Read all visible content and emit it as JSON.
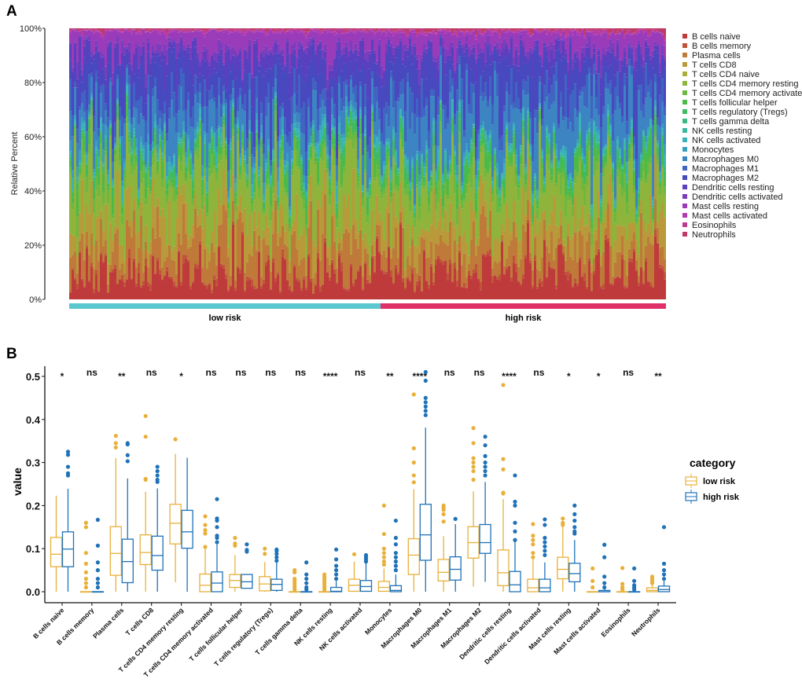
{
  "panel_labels": {
    "a": "A",
    "b": "B"
  },
  "chart_data": [
    {
      "type": "bar",
      "stacked": true,
      "panel": "A",
      "ylabel": "Relative Percent",
      "ylim": [
        0,
        100
      ],
      "yticks": [
        "0%",
        "20%",
        "40%",
        "60%",
        "80%",
        "100%"
      ],
      "legend_position": "right",
      "series_names": [
        "B cells naive",
        "B cells memory",
        "Plasma cells",
        "T cells CD8",
        "T cells CD4 naive",
        "T cells CD4 memory resting",
        "T cells CD4 memory activated",
        "T cells follicular helper",
        "T cells regulatory (Tregs)",
        "T cells gamma delta",
        "NK cells resting",
        "NK cells activated",
        "Monocytes",
        "Macrophages M0",
        "Macrophages M1",
        "Macrophages M2",
        "Dendritic cells resting",
        "Dendritic cells activated",
        "Mast cells resting",
        "Mast cells activated",
        "Eosinophils",
        "Neutrophils"
      ],
      "colors": [
        "#BF3B3B",
        "#C0543A",
        "#BF7A3A",
        "#B89A3A",
        "#A9AD3A",
        "#8EB43C",
        "#6DB840",
        "#4CBA48",
        "#3DBA62",
        "#3BB880",
        "#3BB79E",
        "#3AB3B6",
        "#3A9FBF",
        "#3C84C2",
        "#3F64C1",
        "#4848BF",
        "#5A3FBE",
        "#7A3DBD",
        "#9A3CBA",
        "#B23BB0",
        "#BD3B8E",
        "#BF3B66"
      ],
      "groups": [
        {
          "name": "low risk",
          "color": "#5BC8D0",
          "mean_composition": [
            0.09,
            0.01,
            0.1,
            0.1,
            0.0,
            0.16,
            0.03,
            0.03,
            0.02,
            0.005,
            0.005,
            0.02,
            0.02,
            0.09,
            0.05,
            0.12,
            0.06,
            0.02,
            0.055,
            0.005,
            0.005,
            0.005
          ]
        },
        {
          "name": "high risk",
          "color": "#E0306A",
          "mean_composition": [
            0.1,
            0.01,
            0.08,
            0.09,
            0.0,
            0.14,
            0.03,
            0.03,
            0.02,
            0.005,
            0.01,
            0.015,
            0.01,
            0.14,
            0.055,
            0.12,
            0.03,
            0.02,
            0.045,
            0.005,
            0.005,
            0.008
          ]
        }
      ]
    },
    {
      "type": "box",
      "panel": "B",
      "ylabel": "value",
      "ylim": [
        0,
        0.52
      ],
      "yticks": [
        "0.0",
        "0.1",
        "0.2",
        "0.3",
        "0.4",
        "0.5"
      ],
      "legend_title": "category",
      "legend_position": "right",
      "series": [
        {
          "name": "low risk",
          "color": "#E8B03A"
        },
        {
          "name": "high risk",
          "color": "#1F72B8"
        }
      ],
      "categories": [
        "B cells naive",
        "B cells memory",
        "Plasma cells",
        "T cells CD8",
        "T cells CD4 memory resting",
        "T cells CD4 memory activated",
        "T cells follicular helper",
        "T cells regulatory (Tregs)",
        "T cells gamma delta",
        "NK cells resting",
        "NK cells activated",
        "Monocytes",
        "Macrophages M0",
        "Macrophages M1",
        "Macrophages M2",
        "Dendritic cells resting",
        "Dendritic cells activated",
        "Mast cells resting",
        "Mast cells activated",
        "Eosinophils",
        "Neutrophils"
      ],
      "significance": [
        "*",
        "ns",
        "**",
        "ns",
        "*",
        "ns",
        "ns",
        "ns",
        "ns",
        "****",
        "ns",
        "**",
        "****",
        "ns",
        "ns",
        "****",
        "ns",
        "*",
        "*",
        "ns",
        "**"
      ],
      "stats_format": "[whisker_low, q1, median, q3, whisker_high]",
      "low_risk": [
        {
          "s": [
            0,
            0.058,
            0.087,
            0.126,
            0.223
          ],
          "out": []
        },
        {
          "s": [
            0,
            0,
            0,
            0,
            0
          ],
          "out": [
            0.01,
            0.02,
            0.03,
            0.045,
            0.065,
            0.09,
            0.15,
            0.16
          ]
        },
        {
          "s": [
            0,
            0.038,
            0.089,
            0.151,
            0.31
          ],
          "out": [
            0.335,
            0.345,
            0.362
          ]
        },
        {
          "s": [
            0,
            0.063,
            0.091,
            0.132,
            0.232
          ],
          "out": [
            0.26,
            0.262,
            0.36,
            0.408
          ]
        },
        {
          "s": [
            0.022,
            0.111,
            0.159,
            0.203,
            0.32
          ],
          "out": [
            0.354
          ]
        },
        {
          "s": [
            0,
            0,
            0.015,
            0.041,
            0.1
          ],
          "out": [
            0.104,
            0.135,
            0.143,
            0.155,
            0.175
          ]
        },
        {
          "s": [
            0,
            0.01,
            0.026,
            0.04,
            0.085
          ],
          "out": [
            0.107,
            0.112,
            0.125
          ]
        },
        {
          "s": [
            0,
            0.002,
            0.018,
            0.035,
            0.069
          ],
          "out": [
            0.088,
            0.1
          ]
        },
        {
          "s": [
            0,
            0,
            0,
            0,
            0
          ],
          "out": [
            0.005,
            0.01,
            0.015,
            0.02,
            0.025,
            0.03,
            0.045,
            0.05
          ]
        },
        {
          "s": [
            0,
            0,
            0,
            0,
            0
          ],
          "out": [
            0.005,
            0.01,
            0.015,
            0.02,
            0.025,
            0.03,
            0.035,
            0.04
          ]
        },
        {
          "s": [
            0,
            0.001,
            0.015,
            0.029,
            0.07
          ],
          "out": [
            0.087
          ]
        },
        {
          "s": [
            0,
            0.001,
            0.01,
            0.024,
            0.054
          ],
          "out": [
            0.063,
            0.07,
            0.08,
            0.09,
            0.1,
            0.134,
            0.2
          ]
        },
        {
          "s": [
            0,
            0.04,
            0.085,
            0.123,
            0.238
          ],
          "out": [
            0.254,
            0.27,
            0.3,
            0.333,
            0.458
          ]
        },
        {
          "s": [
            0,
            0.025,
            0.045,
            0.075,
            0.129
          ],
          "out": [
            0.163,
            0.18,
            0.19,
            0.195,
            0.2
          ]
        },
        {
          "s": [
            0.012,
            0.078,
            0.114,
            0.151,
            0.233
          ],
          "out": [
            0.26,
            0.28,
            0.29,
            0.3,
            0.31,
            0.345,
            0.38
          ]
        },
        {
          "s": [
            0,
            0.014,
            0.044,
            0.097,
            0.215
          ],
          "out": [
            0.228,
            0.23,
            0.284,
            0.308,
            0.48
          ]
        },
        {
          "s": [
            0,
            0,
            0.009,
            0.029,
            0.075
          ],
          "out": [
            0.08,
            0.09,
            0.11,
            0.12,
            0.13,
            0.157
          ]
        },
        {
          "s": [
            0,
            0.03,
            0.052,
            0.08,
            0.153
          ],
          "out": [
            0.155,
            0.16,
            0.17
          ]
        },
        {
          "s": [
            0,
            0,
            0,
            0,
            0
          ],
          "out": [
            0.01,
            0.025,
            0.054
          ]
        },
        {
          "s": [
            0,
            0,
            0,
            0,
            0
          ],
          "out": [
            0.005,
            0.01,
            0.018,
            0.055
          ]
        },
        {
          "s": [
            0,
            0,
            0.003,
            0.009,
            0.018
          ],
          "out": [
            0.02,
            0.025,
            0.03,
            0.035
          ]
        }
      ],
      "high_risk": [
        {
          "s": [
            0,
            0.058,
            0.099,
            0.139,
            0.239
          ],
          "out": [
            0.27,
            0.275,
            0.29,
            0.318,
            0.325
          ]
        },
        {
          "s": [
            0,
            0,
            0,
            0,
            0
          ],
          "out": [
            0.01,
            0.02,
            0.03,
            0.05,
            0.068,
            0.107,
            0.167
          ]
        },
        {
          "s": [
            0,
            0.021,
            0.07,
            0.122,
            0.263
          ],
          "out": [
            0.303,
            0.317,
            0.342,
            0.345
          ]
        },
        {
          "s": [
            0,
            0.05,
            0.084,
            0.129,
            0.24
          ],
          "out": [
            0.255,
            0.26,
            0.27,
            0.28,
            0.29
          ]
        },
        {
          "s": [
            0,
            0.101,
            0.139,
            0.189,
            0.311
          ],
          "out": []
        },
        {
          "s": [
            0,
            0,
            0.02,
            0.046,
            0.11
          ],
          "out": [
            0.115,
            0.125,
            0.13,
            0.15,
            0.165,
            0.17,
            0.215
          ]
        },
        {
          "s": [
            0.008,
            0.008,
            0.023,
            0.04,
            0.04
          ],
          "out": [
            0.093,
            0.097,
            0.11
          ]
        },
        {
          "s": [
            0,
            0.003,
            0.017,
            0.029,
            0.068
          ],
          "out": [
            0.072,
            0.08,
            0.088,
            0.095,
            0.098
          ]
        },
        {
          "s": [
            0,
            0,
            0,
            0,
            0
          ],
          "out": [
            0.005,
            0.01,
            0.02,
            0.03,
            0.04,
            0.068
          ]
        },
        {
          "s": [
            0,
            0,
            0.001,
            0.01,
            0.025
          ],
          "out": [
            0.03,
            0.04,
            0.05,
            0.06,
            0.075,
            0.098
          ]
        },
        {
          "s": [
            0,
            0.001,
            0.012,
            0.026,
            0.067
          ],
          "out": [
            0.07,
            0.075,
            0.08,
            0.085
          ]
        },
        {
          "s": [
            0,
            0,
            0.003,
            0.014,
            0.04
          ],
          "out": [
            0.05,
            0.06,
            0.07,
            0.08,
            0.09,
            0.11,
            0.125,
            0.165
          ]
        },
        {
          "s": [
            0,
            0.073,
            0.132,
            0.203,
            0.381
          ],
          "out": [
            0.41,
            0.42,
            0.43,
            0.44,
            0.45,
            0.49,
            0.51
          ]
        },
        {
          "s": [
            0,
            0.027,
            0.052,
            0.081,
            0.157
          ],
          "out": [
            0.169
          ]
        },
        {
          "s": [
            0.023,
            0.089,
            0.114,
            0.156,
            0.255
          ],
          "out": [
            0.27,
            0.28,
            0.29,
            0.3,
            0.315,
            0.34,
            0.36
          ]
        },
        {
          "s": [
            0,
            0,
            0.016,
            0.047,
            0.118
          ],
          "out": [
            0.12,
            0.14,
            0.16,
            0.2,
            0.209,
            0.27
          ]
        },
        {
          "s": [
            0,
            0,
            0.009,
            0.029,
            0.068
          ],
          "out": [
            0.085,
            0.095,
            0.105,
            0.115,
            0.125,
            0.155,
            0.168
          ]
        },
        {
          "s": [
            0,
            0.023,
            0.042,
            0.066,
            0.12
          ],
          "out": [
            0.135,
            0.14,
            0.15,
            0.165,
            0.18,
            0.2
          ]
        },
        {
          "s": [
            0,
            0,
            0,
            0.003,
            0.005
          ],
          "out": [
            0.01,
            0.02,
            0.035,
            0.08,
            0.109
          ]
        },
        {
          "s": [
            0,
            0,
            0,
            0,
            0
          ],
          "out": [
            0.005,
            0.01,
            0.015,
            0.025,
            0.054
          ]
        },
        {
          "s": [
            0,
            0,
            0.005,
            0.013,
            0.025
          ],
          "out": [
            0.03,
            0.04,
            0.05,
            0.065,
            0.15
          ]
        }
      ]
    }
  ]
}
